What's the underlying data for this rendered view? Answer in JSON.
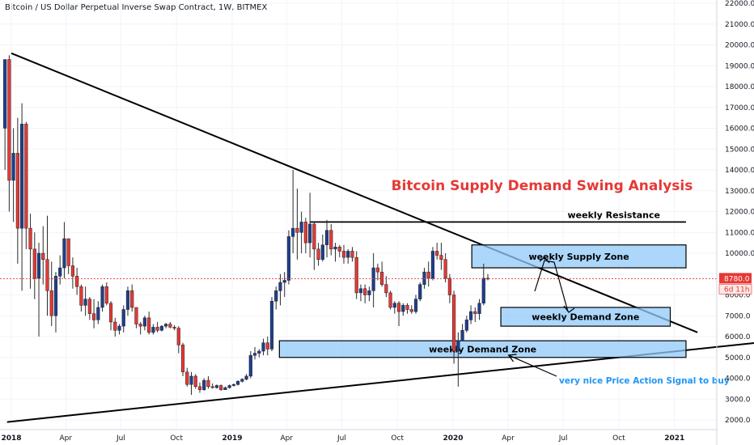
{
  "header": {
    "title": "Bitcoin / US Dollar Perpetual Inverse Swap Contract, 1W, BITMEX"
  },
  "chart_data": {
    "type": "candlestick",
    "title": "Bitcoin Supply Demand Swing Analysis",
    "ylim": [
      1500,
      22000
    ],
    "y_ticks": [
      2000,
      3000,
      4000,
      5000,
      6000,
      7000,
      8000,
      9000,
      10000,
      11000,
      12000,
      13000,
      14000,
      15000,
      16000,
      17000,
      18000,
      19000,
      20000,
      21000,
      22000
    ],
    "x_ticks": [
      "2018",
      "Apr",
      "Jul",
      "Oct",
      "2019",
      "Apr",
      "Jul",
      "Oct",
      "2020",
      "Apr",
      "Jul",
      "Oct",
      "2021"
    ],
    "price_label": "8780.0",
    "countdown_label": "6d 11h",
    "colors": {
      "up": "#1e3f8f",
      "down": "#e53935",
      "zone_fill": "#90caf9",
      "zone_border": "#000000",
      "annotation": "#2196f3",
      "price_line": "#e53935"
    },
    "candles": [
      [
        16000,
        19300,
        14000,
        19300
      ],
      [
        19300,
        19500,
        12000,
        13500
      ],
      [
        13500,
        16000,
        11500,
        14800
      ],
      [
        14800,
        16500,
        9500,
        11200
      ],
      [
        11200,
        17200,
        8200,
        16200
      ],
      [
        16200,
        16300,
        10200,
        11200
      ],
      [
        11200,
        11900,
        8300,
        10200
      ],
      [
        10200,
        11000,
        7800,
        8800
      ],
      [
        8800,
        10500,
        6000,
        10000
      ],
      [
        10000,
        11300,
        8500,
        9700
      ],
      [
        9700,
        11800,
        7000,
        8200
      ],
      [
        8200,
        9600,
        6500,
        7000
      ],
      [
        7000,
        9100,
        6200,
        8900
      ],
      [
        8900,
        9900,
        8500,
        9300
      ],
      [
        9300,
        11500,
        8800,
        10700
      ],
      [
        10700,
        10600,
        9000,
        9400
      ],
      [
        9400,
        9800,
        8300,
        8900
      ],
      [
        8900,
        9300,
        8000,
        8400
      ],
      [
        8400,
        8500,
        7200,
        7500
      ],
      [
        7500,
        8400,
        7000,
        7800
      ],
      [
        7800,
        7900,
        6800,
        7100
      ],
      [
        7100,
        7800,
        6400,
        6800
      ],
      [
        6800,
        7700,
        6600,
        7400
      ],
      [
        7400,
        8500,
        7200,
        8400
      ],
      [
        8400,
        8600,
        7500,
        7600
      ],
      [
        7600,
        7700,
        6300,
        6700
      ],
      [
        6700,
        6900,
        6000,
        6300
      ],
      [
        6300,
        6600,
        6100,
        6500
      ],
      [
        6500,
        7500,
        6200,
        7300
      ],
      [
        7300,
        8400,
        7000,
        8200
      ],
      [
        8200,
        8500,
        7200,
        7400
      ],
      [
        7400,
        7400,
        6400,
        6600
      ],
      [
        6600,
        6700,
        6100,
        6500
      ],
      [
        6500,
        7000,
        6300,
        6900
      ],
      [
        6900,
        7200,
        6100,
        6200
      ],
      [
        6200,
        6600,
        6100,
        6450
      ],
      [
        6450,
        6700,
        6200,
        6300
      ],
      [
        6300,
        6550,
        6250,
        6500
      ],
      [
        6500,
        6650,
        6400,
        6600
      ],
      [
        6600,
        6700,
        6400,
        6450
      ],
      [
        6450,
        6550,
        6300,
        6400
      ],
      [
        6400,
        6500,
        5200,
        5600
      ],
      [
        5600,
        5700,
        4100,
        4300
      ],
      [
        4300,
        4500,
        3600,
        3700
      ],
      [
        3700,
        4300,
        3200,
        4100
      ],
      [
        4100,
        4200,
        3500,
        3600
      ],
      [
        3600,
        3800,
        3300,
        3450
      ],
      [
        3450,
        4000,
        3400,
        3900
      ],
      [
        3900,
        4100,
        3500,
        3600
      ],
      [
        3600,
        3750,
        3500,
        3550
      ],
      [
        3550,
        3700,
        3500,
        3650
      ],
      [
        3650,
        3700,
        3400,
        3450
      ],
      [
        3450,
        3600,
        3450,
        3550
      ],
      [
        3550,
        3700,
        3500,
        3650
      ],
      [
        3650,
        3750,
        3600,
        3700
      ],
      [
        3700,
        3900,
        3650,
        3850
      ],
      [
        3850,
        4000,
        3800,
        3950
      ],
      [
        3950,
        4200,
        3900,
        4100
      ],
      [
        4100,
        5300,
        4000,
        5100
      ],
      [
        5100,
        5500,
        4900,
        5200
      ],
      [
        5200,
        5400,
        5000,
        5300
      ],
      [
        5300,
        5900,
        5100,
        5700
      ],
      [
        5700,
        6000,
        5100,
        5400
      ],
      [
        5400,
        7900,
        5300,
        7700
      ],
      [
        7700,
        8400,
        7300,
        8200
      ],
      [
        8200,
        9000,
        7500,
        8600
      ],
      [
        8600,
        9100,
        7900,
        8700
      ],
      [
        8700,
        11100,
        8500,
        10800
      ],
      [
        10800,
        14000,
        10000,
        11200
      ],
      [
        11200,
        13100,
        9700,
        11000
      ],
      [
        11000,
        12000,
        10000,
        11500
      ],
      [
        11500,
        11700,
        10000,
        10500
      ],
      [
        10500,
        12900,
        9800,
        11400
      ],
      [
        11400,
        11500,
        9200,
        10200
      ],
      [
        10200,
        10500,
        9400,
        9700
      ],
      [
        9700,
        10900,
        9600,
        10400
      ],
      [
        10400,
        11600,
        9800,
        11100
      ],
      [
        11100,
        11400,
        9900,
        10200
      ],
      [
        10200,
        10500,
        9600,
        10300
      ],
      [
        10300,
        10400,
        9800,
        10100
      ],
      [
        10100,
        10400,
        9500,
        9800
      ],
      [
        9800,
        10200,
        9500,
        10100
      ],
      [
        10100,
        10300,
        9600,
        9800
      ],
      [
        9800,
        10100,
        7800,
        8100
      ],
      [
        8100,
        8500,
        7700,
        8300
      ],
      [
        8300,
        8500,
        7600,
        8000
      ],
      [
        8000,
        8400,
        7700,
        8200
      ],
      [
        8200,
        10000,
        7400,
        9300
      ],
      [
        9300,
        9500,
        8700,
        9100
      ],
      [
        9100,
        9600,
        8400,
        8500
      ],
      [
        8500,
        8900,
        7900,
        8100
      ],
      [
        8100,
        8200,
        7300,
        7400
      ],
      [
        7400,
        7700,
        7100,
        7600
      ],
      [
        7600,
        7700,
        6500,
        7200
      ],
      [
        7200,
        7600,
        7000,
        7500
      ],
      [
        7500,
        7600,
        7100,
        7300
      ],
      [
        7300,
        7500,
        7100,
        7200
      ],
      [
        7200,
        8000,
        7100,
        7800
      ],
      [
        7800,
        8600,
        7700,
        8500
      ],
      [
        8500,
        9300,
        8300,
        9100
      ],
      [
        9100,
        9600,
        8400,
        8800
      ],
      [
        8800,
        10300,
        8700,
        10100
      ],
      [
        10100,
        10500,
        9700,
        9900
      ],
      [
        9900,
        10500,
        9200,
        9700
      ],
      [
        9700,
        10000,
        8600,
        8800
      ],
      [
        8800,
        9000,
        7600,
        8000
      ],
      [
        8000,
        8200,
        4700,
        5300
      ],
      [
        5300,
        6200,
        3600,
        5800
      ],
      [
        5800,
        6600,
        5800,
        6300
      ],
      [
        6300,
        7000,
        6200,
        6800
      ],
      [
        6800,
        7500,
        6600,
        7200
      ],
      [
        7200,
        7400,
        6700,
        7100
      ],
      [
        7100,
        7800,
        6800,
        7600
      ],
      [
        7600,
        9500,
        7500,
        8800
      ],
      [
        8800,
        9000,
        8700,
        8780
      ]
    ],
    "lines": [
      {
        "name": "",
        "points": [
          [
            "2018-01-01",
            19600
          ],
          [
            "2021-02-08",
            6200
          ]
        ]
      },
      {
        "name": "",
        "points": [
          [
            "2017-12-25",
            1900
          ],
          [
            "2021-06-01",
            5750
          ]
        ]
      },
      {
        "name": "weekly Resistance",
        "points": [
          [
            "2019-05-10",
            11500
          ],
          [
            "2021-01-20",
            11500
          ]
        ]
      }
    ],
    "zones": [
      {
        "name": "weekly Supply Zone",
        "x_start": "2020-02-01",
        "x_end": "2021-01-20",
        "y_low": 9300,
        "y_high": 10400
      },
      {
        "name": "weekly Demand Zone",
        "x_start": "2020-03-20",
        "x_end": "2020-12-25",
        "y_low": 6500,
        "y_high": 7400
      },
      {
        "name": "weekly Demand Zone",
        "x_start": "2019-03-20",
        "x_end": "2021-01-20",
        "y_low": 5000,
        "y_high": 5800
      }
    ],
    "annotations": [
      {
        "text": "very nice Price Action Signal to buy",
        "target": [
          "2020-03-22",
          5300
        ]
      }
    ]
  }
}
